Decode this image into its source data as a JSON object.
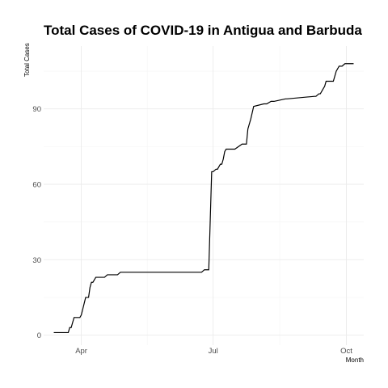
{
  "chart_data": {
    "type": "line",
    "title": "Total Cases of COVID-19 in Antigua and Barbuda",
    "xlabel": "Month",
    "ylabel": "Total Cases",
    "x_ticks": [
      {
        "label": "Apr",
        "date": "2020-04-01"
      },
      {
        "label": "Jul",
        "date": "2020-07-01"
      },
      {
        "label": "Oct",
        "date": "2020-10-01"
      }
    ],
    "y_ticks": [
      0,
      30,
      60,
      90
    ],
    "xlim": [
      "2020-03-06",
      "2020-10-13"
    ],
    "ylim": [
      -4,
      115
    ],
    "grid": true,
    "series": [
      {
        "x": [
          "2020-03-13",
          "2020-03-23",
          "2020-03-24",
          "2020-03-25",
          "2020-03-27",
          "2020-03-28",
          "2020-03-31",
          "2020-04-01",
          "2020-04-04",
          "2020-04-05",
          "2020-04-06",
          "2020-04-07",
          "2020-04-08",
          "2020-04-09",
          "2020-04-11",
          "2020-04-13",
          "2020-04-17",
          "2020-04-19",
          "2020-04-26",
          "2020-04-28",
          "2020-05-22",
          "2020-06-23",
          "2020-06-25",
          "2020-06-26",
          "2020-06-28",
          "2020-06-30",
          "2020-07-01",
          "2020-07-03",
          "2020-07-04",
          "2020-07-06",
          "2020-07-07",
          "2020-07-08",
          "2020-07-09",
          "2020-07-10",
          "2020-07-15",
          "2020-07-16",
          "2020-07-21",
          "2020-07-22",
          "2020-07-23",
          "2020-07-24",
          "2020-07-25",
          "2020-07-27",
          "2020-07-29",
          "2020-08-05",
          "2020-08-07",
          "2020-08-10",
          "2020-08-12",
          "2020-08-20",
          "2020-08-21",
          "2020-09-09",
          "2020-09-10",
          "2020-09-12",
          "2020-09-13",
          "2020-09-14",
          "2020-09-15",
          "2020-09-16",
          "2020-09-17",
          "2020-09-20",
          "2020-09-22",
          "2020-09-23",
          "2020-09-24",
          "2020-09-25",
          "2020-09-26",
          "2020-09-27",
          "2020-09-28",
          "2020-09-30",
          "2020-10-02",
          "2020-10-04",
          "2020-10-05",
          "2020-10-06"
        ],
        "y": [
          1,
          1,
          3,
          3,
          7,
          7,
          7,
          8,
          15,
          15,
          15,
          19,
          21,
          21,
          23,
          23,
          23,
          24,
          24,
          25,
          25,
          25,
          26,
          26,
          26,
          65,
          65,
          66,
          66,
          68,
          68,
          70,
          73,
          74,
          74,
          74,
          76,
          76,
          76,
          76,
          82,
          86,
          91,
          92,
          92,
          93,
          93,
          94,
          94,
          95,
          95,
          96,
          96,
          97,
          98,
          99,
          101,
          101,
          101,
          103,
          105,
          106,
          107,
          107,
          107,
          108,
          108,
          108,
          108,
          108
        ]
      }
    ]
  }
}
